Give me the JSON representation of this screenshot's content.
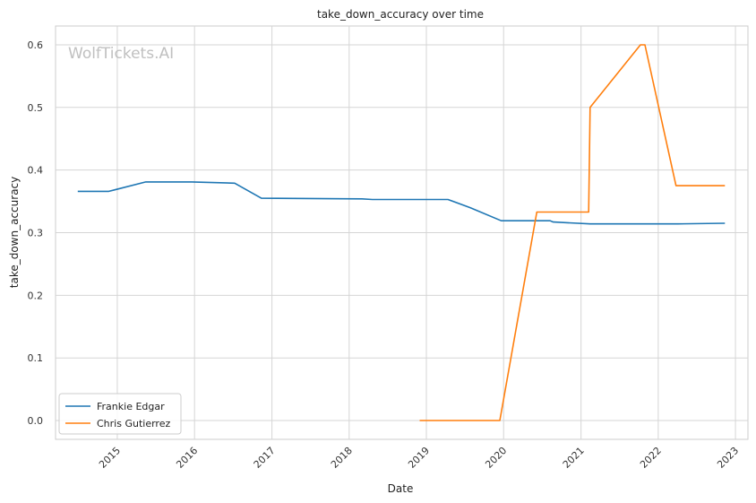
{
  "chart_data": {
    "type": "line",
    "title": "take_down_accuracy over time",
    "xlabel": "Date",
    "ylabel": "take_down_accuracy",
    "watermark": "WolfTickets.AI",
    "x_ticks": [
      "2015",
      "2016",
      "2017",
      "2018",
      "2019",
      "2020",
      "2021",
      "2022",
      "2023"
    ],
    "y_ticks": [
      "0.0",
      "0.1",
      "0.2",
      "0.3",
      "0.4",
      "0.5",
      "0.6"
    ],
    "xlim": [
      "2014-03-15",
      "2023-03-01"
    ],
    "ylim": [
      -0.03,
      0.63
    ],
    "grid": true,
    "legend_position": "lower-left",
    "series": [
      {
        "name": "Frankie Edgar",
        "color": "#1f77b4",
        "points": [
          [
            "2014-06-28",
            0.366
          ],
          [
            "2014-11-22",
            0.366
          ],
          [
            "2015-05-16",
            0.381
          ],
          [
            "2015-12-19",
            0.381
          ],
          [
            "2016-07-09",
            0.379
          ],
          [
            "2016-11-12",
            0.355
          ],
          [
            "2018-03-03",
            0.354
          ],
          [
            "2018-04-21",
            0.353
          ],
          [
            "2019-04-13",
            0.353
          ],
          [
            "2019-07-27",
            0.34
          ],
          [
            "2019-08-10",
            0.338
          ],
          [
            "2019-12-21",
            0.319
          ],
          [
            "2020-08-08",
            0.319
          ],
          [
            "2020-08-22",
            0.317
          ],
          [
            "2021-02-13",
            0.314
          ],
          [
            "2022-04-02",
            0.314
          ],
          [
            "2022-11-12",
            0.315
          ]
        ]
      },
      {
        "name": "Chris Gutierrez",
        "color": "#ff7f0e",
        "points": [
          [
            "2018-11-30",
            0.0
          ],
          [
            "2019-12-14",
            0.0
          ],
          [
            "2020-06-06",
            0.333
          ],
          [
            "2021-02-06",
            0.333
          ],
          [
            "2021-02-13",
            0.5
          ],
          [
            "2021-10-09",
            0.6
          ],
          [
            "2021-10-30",
            0.6
          ],
          [
            "2022-03-26",
            0.375
          ],
          [
            "2022-11-12",
            0.375
          ]
        ]
      }
    ]
  }
}
